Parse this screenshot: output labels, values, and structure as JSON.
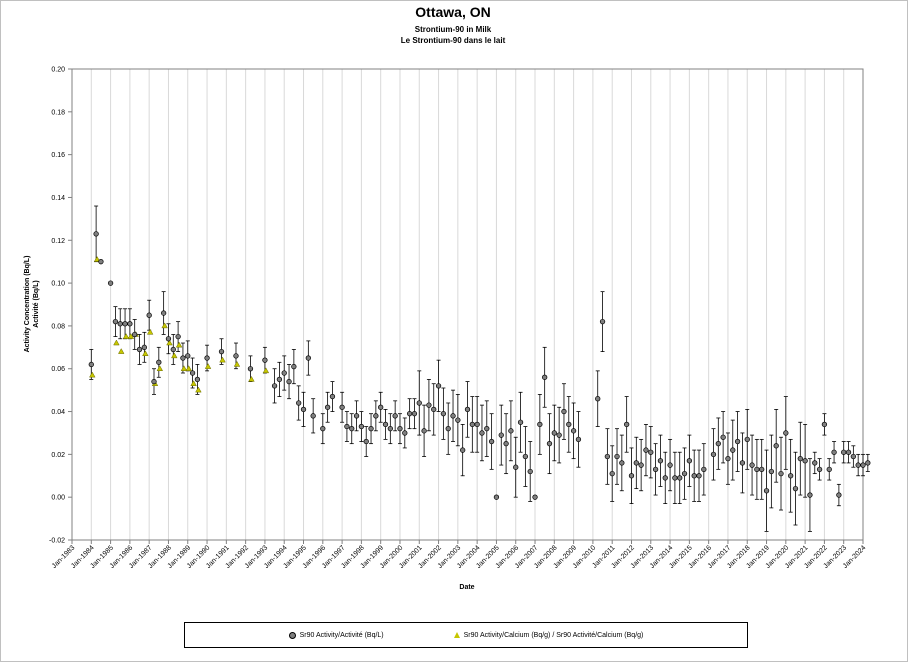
{
  "chart_data": {
    "type": "scatter",
    "title": "Ottawa, ON",
    "subtitle1": "Strontium-90 in Milk",
    "subtitle2": "Le Strontium-90 dans le lait",
    "xlabel": "Date",
    "ylabel1": "Activity Concentration (Bq/L)",
    "ylabel2": "Activité (Bq/L)",
    "ylim": [
      -0.02,
      0.2
    ],
    "y_ticks": [
      "-0.02",
      "0.00",
      "0.02",
      "0.04",
      "0.06",
      "0.08",
      "0.10",
      "0.12",
      "0.14",
      "0.16",
      "0.18",
      "0.20"
    ],
    "y_tick_values": [
      -0.02,
      0,
      0.02,
      0.04,
      0.06,
      0.08,
      0.1,
      0.12,
      0.14,
      0.16,
      0.18,
      0.2
    ],
    "xlim": [
      "Jan-1983",
      "Jan-2024"
    ],
    "x_ticks": [
      "Jan-1983",
      "Jan-1984",
      "Jan-1985",
      "Jan-1986",
      "Jan-1987",
      "Jan-1988",
      "Jan-1989",
      "Jan-1990",
      "Jan-1991",
      "Jan-1992",
      "Jan-1993",
      "Jan-1994",
      "Jan-1995",
      "Jan-1996",
      "Jan-1997",
      "Jan-1998",
      "Jan-1999",
      "Jan-2000",
      "Jan-2001",
      "Jan-2002",
      "Jan-2003",
      "Jan-2004",
      "Jan-2005",
      "Jan-2006",
      "Jan-2007",
      "Jan-2008",
      "Jan-2009",
      "Jan-2010",
      "Jan-2011",
      "Jan-2012",
      "Jan-2013",
      "Jan-2014",
      "Jan-2015",
      "Jan-2016",
      "Jan-2017",
      "Jan-2018",
      "Jan-2019",
      "Jan-2020",
      "Jan-2021",
      "Jan-2022",
      "Jan-2023",
      "Jan-2024"
    ],
    "grid": "vertical",
    "legend_position": "bottom",
    "series": [
      {
        "name": "Sr90 Activity/Activité (Bq/L)",
        "marker": "circle",
        "color": "#7f7f7f",
        "points": [
          {
            "x": "1984-01",
            "y": 0.062,
            "err": 0.007
          },
          {
            "x": "1984-04",
            "y": 0.123,
            "err": 0.013
          },
          {
            "x": "1984-07",
            "y": 0.11
          },
          {
            "x": "1985-01",
            "y": 0.1
          },
          {
            "x": "1985-04",
            "y": 0.082,
            "err": 0.007
          },
          {
            "x": "1985-07",
            "y": 0.081,
            "err": 0.007
          },
          {
            "x": "1985-10",
            "y": 0.081,
            "err": 0.007
          },
          {
            "x": "1986-01",
            "y": 0.081,
            "err": 0.007
          },
          {
            "x": "1986-04",
            "y": 0.076,
            "err": 0.007
          },
          {
            "x": "1986-07",
            "y": 0.069,
            "err": 0.007
          },
          {
            "x": "1986-10",
            "y": 0.07,
            "err": 0.007
          },
          {
            "x": "1987-01",
            "y": 0.085,
            "err": 0.007
          },
          {
            "x": "1987-04",
            "y": 0.054,
            "err": 0.006
          },
          {
            "x": "1987-07",
            "y": 0.063,
            "err": 0.007
          },
          {
            "x": "1987-10",
            "y": 0.086,
            "err": 0.01
          },
          {
            "x": "1988-01",
            "y": 0.074,
            "err": 0.007
          },
          {
            "x": "1988-04",
            "y": 0.069,
            "err": 0.007
          },
          {
            "x": "1988-07",
            "y": 0.075,
            "err": 0.007
          },
          {
            "x": "1988-10",
            "y": 0.065,
            "err": 0.007
          },
          {
            "x": "1989-01",
            "y": 0.066,
            "err": 0.007
          },
          {
            "x": "1989-04",
            "y": 0.058,
            "err": 0.007
          },
          {
            "x": "1989-07",
            "y": 0.055,
            "err": 0.007
          },
          {
            "x": "1990-01",
            "y": 0.065,
            "err": 0.006
          },
          {
            "x": "1990-10",
            "y": 0.068,
            "err": 0.006
          },
          {
            "x": "1991-07",
            "y": 0.066,
            "err": 0.006
          },
          {
            "x": "1992-04",
            "y": 0.06,
            "err": 0.006
          },
          {
            "x": "1993-01",
            "y": 0.064,
            "err": 0.006
          },
          {
            "x": "1993-07",
            "y": 0.052,
            "err": 0.008
          },
          {
            "x": "1993-10",
            "y": 0.055,
            "err": 0.008
          },
          {
            "x": "1994-01",
            "y": 0.058,
            "err": 0.008
          },
          {
            "x": "1994-04",
            "y": 0.054,
            "err": 0.008
          },
          {
            "x": "1994-07",
            "y": 0.061,
            "err": 0.008
          },
          {
            "x": "1994-10",
            "y": 0.044,
            "err": 0.008
          },
          {
            "x": "1995-01",
            "y": 0.041,
            "err": 0.008
          },
          {
            "x": "1995-04",
            "y": 0.065,
            "err": 0.008
          },
          {
            "x": "1995-07",
            "y": 0.038,
            "err": 0.008
          },
          {
            "x": "1996-01",
            "y": 0.032,
            "err": 0.007
          },
          {
            "x": "1996-04",
            "y": 0.042,
            "err": 0.007
          },
          {
            "x": "1996-07",
            "y": 0.047,
            "err": 0.007
          },
          {
            "x": "1997-01",
            "y": 0.042,
            "err": 0.007
          },
          {
            "x": "1997-04",
            "y": 0.033,
            "err": 0.007
          },
          {
            "x": "1997-07",
            "y": 0.032,
            "err": 0.007
          },
          {
            "x": "1997-10",
            "y": 0.038,
            "err": 0.007
          },
          {
            "x": "1998-01",
            "y": 0.033,
            "err": 0.007
          },
          {
            "x": "1998-04",
            "y": 0.026,
            "err": 0.007
          },
          {
            "x": "1998-07",
            "y": 0.032,
            "err": 0.007
          },
          {
            "x": "1998-10",
            "y": 0.038,
            "err": 0.007
          },
          {
            "x": "1999-01",
            "y": 0.042,
            "err": 0.007
          },
          {
            "x": "1999-04",
            "y": 0.034,
            "err": 0.007
          },
          {
            "x": "1999-07",
            "y": 0.032,
            "err": 0.007
          },
          {
            "x": "1999-10",
            "y": 0.038,
            "err": 0.007
          },
          {
            "x": "2000-01",
            "y": 0.032,
            "err": 0.007
          },
          {
            "x": "2000-04",
            "y": 0.03,
            "err": 0.007
          },
          {
            "x": "2000-07",
            "y": 0.039,
            "err": 0.007
          },
          {
            "x": "2000-10",
            "y": 0.039,
            "err": 0.007
          },
          {
            "x": "2001-01",
            "y": 0.044,
            "err": 0.015
          },
          {
            "x": "2001-04",
            "y": 0.031,
            "err": 0.012
          },
          {
            "x": "2001-07",
            "y": 0.043,
            "err": 0.012
          },
          {
            "x": "2001-10",
            "y": 0.041,
            "err": 0.012
          },
          {
            "x": "2002-01",
            "y": 0.052,
            "err": 0.012
          },
          {
            "x": "2002-04",
            "y": 0.039,
            "err": 0.012
          },
          {
            "x": "2002-07",
            "y": 0.032,
            "err": 0.012
          },
          {
            "x": "2002-10",
            "y": 0.038,
            "err": 0.012
          },
          {
            "x": "2003-01",
            "y": 0.036,
            "err": 0.012
          },
          {
            "x": "2003-04",
            "y": 0.022,
            "err": 0.012
          },
          {
            "x": "2003-07",
            "y": 0.041,
            "err": 0.013
          },
          {
            "x": "2003-10",
            "y": 0.034,
            "err": 0.013
          },
          {
            "x": "2004-01",
            "y": 0.034,
            "err": 0.013
          },
          {
            "x": "2004-04",
            "y": 0.03,
            "err": 0.013
          },
          {
            "x": "2004-07",
            "y": 0.032,
            "err": 0.013
          },
          {
            "x": "2004-10",
            "y": 0.026,
            "err": 0.013
          },
          {
            "x": "2005-01",
            "y": 0.0
          },
          {
            "x": "2005-04",
            "y": 0.029,
            "err": 0.014
          },
          {
            "x": "2005-07",
            "y": 0.025,
            "err": 0.014
          },
          {
            "x": "2005-10",
            "y": 0.031,
            "err": 0.014
          },
          {
            "x": "2006-01",
            "y": 0.014,
            "err": 0.014
          },
          {
            "x": "2006-04",
            "y": 0.035,
            "err": 0.014
          },
          {
            "x": "2006-07",
            "y": 0.019,
            "err": 0.014
          },
          {
            "x": "2006-10",
            "y": 0.012,
            "err": 0.014
          },
          {
            "x": "2007-01",
            "y": 0.0
          },
          {
            "x": "2007-04",
            "y": 0.034,
            "err": 0.014
          },
          {
            "x": "2007-07",
            "y": 0.056,
            "err": 0.014
          },
          {
            "x": "2007-10",
            "y": 0.025,
            "err": 0.014
          },
          {
            "x": "2008-01",
            "y": 0.03,
            "err": 0.013
          },
          {
            "x": "2008-04",
            "y": 0.029,
            "err": 0.013
          },
          {
            "x": "2008-07",
            "y": 0.04,
            "err": 0.013
          },
          {
            "x": "2008-10",
            "y": 0.034,
            "err": 0.013
          },
          {
            "x": "2009-01",
            "y": 0.031,
            "err": 0.013
          },
          {
            "x": "2009-04",
            "y": 0.027,
            "err": 0.013
          },
          {
            "x": "2010-04",
            "y": 0.046,
            "err": 0.013
          },
          {
            "x": "2010-07",
            "y": 0.082,
            "err": 0.014
          },
          {
            "x": "2010-10",
            "y": 0.019,
            "err": 0.013
          },
          {
            "x": "2011-01",
            "y": 0.011,
            "err": 0.013
          },
          {
            "x": "2011-04",
            "y": 0.019,
            "err": 0.013
          },
          {
            "x": "2011-07",
            "y": 0.016,
            "err": 0.013
          },
          {
            "x": "2011-10",
            "y": 0.034,
            "err": 0.013
          },
          {
            "x": "2012-01",
            "y": 0.01,
            "err": 0.013
          },
          {
            "x": "2012-04",
            "y": 0.016,
            "err": 0.012
          },
          {
            "x": "2012-07",
            "y": 0.015,
            "err": 0.012
          },
          {
            "x": "2012-10",
            "y": 0.022,
            "err": 0.012
          },
          {
            "x": "2013-01",
            "y": 0.021,
            "err": 0.012
          },
          {
            "x": "2013-04",
            "y": 0.013,
            "err": 0.012
          },
          {
            "x": "2013-07",
            "y": 0.017,
            "err": 0.012
          },
          {
            "x": "2013-10",
            "y": 0.009,
            "err": 0.012
          },
          {
            "x": "2014-01",
            "y": 0.015,
            "err": 0.012
          },
          {
            "x": "2014-04",
            "y": 0.009,
            "err": 0.012
          },
          {
            "x": "2014-07",
            "y": 0.009,
            "err": 0.012
          },
          {
            "x": "2014-10",
            "y": 0.011,
            "err": 0.012
          },
          {
            "x": "2015-01",
            "y": 0.017,
            "err": 0.012
          },
          {
            "x": "2015-04",
            "y": 0.01,
            "err": 0.012
          },
          {
            "x": "2015-07",
            "y": 0.01,
            "err": 0.012
          },
          {
            "x": "2015-10",
            "y": 0.013,
            "err": 0.012
          },
          {
            "x": "2016-04",
            "y": 0.02,
            "err": 0.012
          },
          {
            "x": "2016-07",
            "y": 0.025,
            "err": 0.012
          },
          {
            "x": "2016-10",
            "y": 0.028,
            "err": 0.012
          },
          {
            "x": "2017-01",
            "y": 0.018,
            "err": 0.012
          },
          {
            "x": "2017-04",
            "y": 0.022,
            "err": 0.014
          },
          {
            "x": "2017-07",
            "y": 0.026,
            "err": 0.014
          },
          {
            "x": "2017-10",
            "y": 0.016,
            "err": 0.014
          },
          {
            "x": "2018-01",
            "y": 0.027,
            "err": 0.014
          },
          {
            "x": "2018-04",
            "y": 0.015,
            "err": 0.014
          },
          {
            "x": "2018-07",
            "y": 0.013,
            "err": 0.014
          },
          {
            "x": "2018-10",
            "y": 0.013,
            "err": 0.014
          },
          {
            "x": "2019-01",
            "y": 0.003,
            "err": 0.019
          },
          {
            "x": "2019-04",
            "y": 0.012,
            "err": 0.017
          },
          {
            "x": "2019-07",
            "y": 0.024,
            "err": 0.017
          },
          {
            "x": "2019-10",
            "y": 0.011,
            "err": 0.017
          },
          {
            "x": "2020-01",
            "y": 0.03,
            "err": 0.017
          },
          {
            "x": "2020-04",
            "y": 0.01,
            "err": 0.017
          },
          {
            "x": "2020-07",
            "y": 0.004,
            "err": 0.017
          },
          {
            "x": "2020-10",
            "y": 0.018,
            "err": 0.017
          },
          {
            "x": "2021-01",
            "y": 0.017,
            "err": 0.017
          },
          {
            "x": "2021-04",
            "y": 0.001,
            "err": 0.017
          },
          {
            "x": "2021-07",
            "y": 0.016,
            "err": 0.005
          },
          {
            "x": "2021-10",
            "y": 0.013,
            "err": 0.005
          },
          {
            "x": "2022-01",
            "y": 0.034,
            "err": 0.005
          },
          {
            "x": "2022-04",
            "y": 0.013,
            "err": 0.005
          },
          {
            "x": "2022-07",
            "y": 0.021,
            "err": 0.005
          },
          {
            "x": "2022-10",
            "y": 0.001,
            "err": 0.005
          },
          {
            "x": "2023-01",
            "y": 0.021,
            "err": 0.005
          },
          {
            "x": "2023-04",
            "y": 0.021,
            "err": 0.005
          },
          {
            "x": "2023-07",
            "y": 0.019,
            "err": 0.005
          },
          {
            "x": "2023-10",
            "y": 0.015,
            "err": 0.005
          },
          {
            "x": "2024-01",
            "y": 0.015,
            "err": 0.005
          },
          {
            "x": "2024-04",
            "y": 0.016,
            "err": 0.004
          }
        ]
      },
      {
        "name": "Sr90 Activity/Calcium (Bq/g) / Sr90 Activité/Calcium (Bq/g)",
        "marker": "triangle",
        "color": "#c6c600",
        "points": [
          {
            "x": "1984-01",
            "y": 0.057
          },
          {
            "x": "1984-04",
            "y": 0.111
          },
          {
            "x": "1985-04",
            "y": 0.072
          },
          {
            "x": "1985-07",
            "y": 0.068
          },
          {
            "x": "1985-10",
            "y": 0.075
          },
          {
            "x": "1986-01",
            "y": 0.075
          },
          {
            "x": "1986-04",
            "y": 0.076
          },
          {
            "x": "1986-10",
            "y": 0.067
          },
          {
            "x": "1987-01",
            "y": 0.077
          },
          {
            "x": "1987-04",
            "y": 0.053
          },
          {
            "x": "1987-07",
            "y": 0.06
          },
          {
            "x": "1987-10",
            "y": 0.08
          },
          {
            "x": "1988-01",
            "y": 0.072
          },
          {
            "x": "1988-04",
            "y": 0.066
          },
          {
            "x": "1988-07",
            "y": 0.071
          },
          {
            "x": "1988-10",
            "y": 0.06
          },
          {
            "x": "1989-01",
            "y": 0.06
          },
          {
            "x": "1989-04",
            "y": 0.053
          },
          {
            "x": "1989-07",
            "y": 0.05
          },
          {
            "x": "1990-01",
            "y": 0.061
          },
          {
            "x": "1990-10",
            "y": 0.064
          },
          {
            "x": "1991-07",
            "y": 0.062
          },
          {
            "x": "1992-04",
            "y": 0.055
          },
          {
            "x": "1993-01",
            "y": 0.059
          }
        ]
      }
    ]
  },
  "legend": {
    "item1": "Sr90 Activity/Activité (Bq/L)",
    "item2": "Sr90 Activity/Calcium (Bq/g) / Sr90 Activité/Calcium (Bq/g)"
  }
}
